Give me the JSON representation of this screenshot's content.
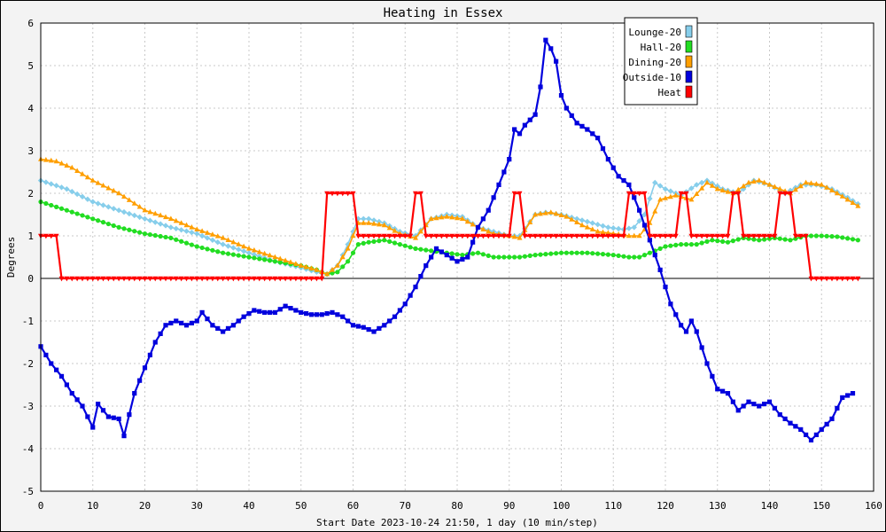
{
  "chart_data": {
    "type": "line",
    "title": "Heating in Essex",
    "xlabel": "Start Date 2023-10-24 21:50, 1 day (10 min/step)",
    "ylabel": "Degrees",
    "xlim": [
      0,
      160
    ],
    "ylim": [
      -5,
      6
    ],
    "xticks": [
      0,
      10,
      20,
      30,
      40,
      50,
      60,
      70,
      80,
      90,
      100,
      110,
      120,
      130,
      140,
      150,
      160
    ],
    "yticks": [
      -5,
      -4,
      -3,
      -2,
      -1,
      0,
      1,
      2,
      3,
      4,
      5,
      6
    ],
    "grid": true,
    "legend_position": "top-right",
    "series": [
      {
        "name": "Lounge-20",
        "color": "#87ceeb",
        "marker": "diamond",
        "x": [
          0,
          5,
          10,
          15,
          20,
          25,
          30,
          35,
          40,
          45,
          50,
          53,
          55,
          57,
          59,
          61,
          63,
          66,
          69,
          72,
          75,
          78,
          81,
          84,
          87,
          90,
          92,
          95,
          97,
          100,
          103,
          106,
          109,
          112,
          114,
          116,
          118,
          120,
          123,
          126,
          128,
          131,
          134,
          137,
          140,
          143,
          146,
          149,
          152,
          155,
          157
        ],
        "y": [
          2.3,
          2.1,
          1.8,
          1.6,
          1.4,
          1.2,
          1.05,
          0.8,
          0.6,
          0.4,
          0.25,
          0.15,
          0.1,
          0.3,
          0.8,
          1.4,
          1.4,
          1.3,
          1.1,
          1.0,
          1.4,
          1.5,
          1.45,
          1.2,
          1.1,
          1.0,
          1.0,
          1.5,
          1.55,
          1.5,
          1.4,
          1.3,
          1.2,
          1.15,
          1.2,
          1.5,
          2.25,
          2.1,
          1.95,
          2.2,
          2.3,
          2.1,
          2.0,
          2.3,
          2.2,
          2.0,
          2.2,
          2.2,
          2.1,
          1.9,
          1.75
        ]
      },
      {
        "name": "Hall-20",
        "color": "#22dd22",
        "marker": "circle",
        "x": [
          0,
          5,
          10,
          15,
          20,
          25,
          30,
          35,
          40,
          45,
          50,
          53,
          55,
          57,
          59,
          61,
          63,
          66,
          69,
          72,
          75,
          78,
          81,
          84,
          87,
          90,
          92,
          95,
          100,
          105,
          110,
          113,
          115,
          117,
          120,
          123,
          126,
          129,
          132,
          135,
          138,
          141,
          144,
          147,
          150,
          153,
          157
        ],
        "y": [
          1.8,
          1.6,
          1.4,
          1.2,
          1.05,
          0.95,
          0.75,
          0.6,
          0.5,
          0.4,
          0.3,
          0.2,
          0.1,
          0.15,
          0.4,
          0.8,
          0.85,
          0.9,
          0.8,
          0.7,
          0.65,
          0.6,
          0.55,
          0.6,
          0.5,
          0.5,
          0.5,
          0.55,
          0.6,
          0.6,
          0.55,
          0.5,
          0.5,
          0.6,
          0.75,
          0.8,
          0.8,
          0.9,
          0.85,
          0.95,
          0.9,
          0.95,
          0.9,
          1.0,
          1.0,
          0.98,
          0.9
        ]
      },
      {
        "name": "Dining-20",
        "color": "#ff9f00",
        "marker": "triangle",
        "x": [
          0,
          3,
          6,
          10,
          15,
          20,
          25,
          30,
          35,
          40,
          45,
          50,
          53,
          55,
          57,
          59,
          61,
          63,
          66,
          69,
          72,
          75,
          78,
          81,
          84,
          87,
          90,
          92,
          95,
          98,
          101,
          104,
          107,
          110,
          113,
          115,
          117,
          119,
          122,
          125,
          128,
          130,
          133,
          136,
          138,
          141,
          144,
          147,
          150,
          153,
          157
        ],
        "y": [
          2.8,
          2.75,
          2.6,
          2.3,
          2.0,
          1.6,
          1.4,
          1.15,
          0.95,
          0.7,
          0.5,
          0.3,
          0.2,
          0.1,
          0.3,
          0.7,
          1.3,
          1.3,
          1.25,
          1.05,
          0.95,
          1.4,
          1.45,
          1.4,
          1.2,
          1.05,
          1.0,
          0.95,
          1.5,
          1.55,
          1.45,
          1.25,
          1.1,
          1.05,
          1.0,
          1.0,
          1.3,
          1.85,
          1.95,
          1.85,
          2.25,
          2.1,
          2.0,
          2.25,
          2.3,
          2.15,
          2.0,
          2.25,
          2.2,
          2.0,
          1.7
        ]
      },
      {
        "name": "Outside-10",
        "color": "#0000dd",
        "marker": "square",
        "x": [
          0,
          2,
          4,
          6,
          8,
          10,
          11,
          13,
          15,
          16,
          18,
          20,
          22,
          24,
          26,
          28,
          30,
          31,
          33,
          35,
          37,
          39,
          41,
          43,
          45,
          47,
          48,
          50,
          52,
          54,
          56,
          58,
          60,
          62,
          64,
          66,
          68,
          70,
          72,
          74,
          76,
          78,
          80,
          82,
          84,
          86,
          88,
          90,
          91,
          92,
          93,
          95,
          96,
          97,
          98,
          99,
          100,
          101,
          103,
          105,
          107,
          109,
          111,
          113,
          115,
          117,
          119,
          121,
          123,
          124,
          125,
          126,
          128,
          130,
          132,
          134,
          136,
          138,
          140,
          142,
          144,
          146,
          148,
          150,
          152,
          154,
          156
        ],
        "y": [
          -1.6,
          -2.0,
          -2.3,
          -2.7,
          -3.0,
          -3.5,
          -2.95,
          -3.25,
          -3.3,
          -3.7,
          -2.7,
          -2.1,
          -1.5,
          -1.1,
          -1.0,
          -1.1,
          -1.0,
          -0.8,
          -1.1,
          -1.25,
          -1.1,
          -0.9,
          -0.75,
          -0.8,
          -0.8,
          -0.65,
          -0.7,
          -0.8,
          -0.85,
          -0.85,
          -0.8,
          -0.9,
          -1.1,
          -1.15,
          -1.25,
          -1.1,
          -0.9,
          -0.6,
          -0.2,
          0.3,
          0.7,
          0.55,
          0.4,
          0.5,
          1.2,
          1.6,
          2.2,
          2.8,
          3.5,
          3.4,
          3.6,
          3.85,
          4.5,
          5.6,
          5.4,
          5.1,
          4.3,
          4.0,
          3.65,
          3.5,
          3.3,
          2.8,
          2.4,
          2.2,
          1.6,
          0.9,
          0.2,
          -0.6,
          -1.1,
          -1.25,
          -1.0,
          -1.25,
          -2.0,
          -2.6,
          -2.7,
          -3.1,
          -2.9,
          -3.0,
          -2.9,
          -3.2,
          -3.4,
          -3.55,
          -3.8,
          -3.55,
          -3.3,
          -2.8,
          -2.7
        ]
      },
      {
        "name": "Heat",
        "color": "#ff0000",
        "marker": "triangle-down",
        "x": [
          0,
          3,
          4,
          54,
          55,
          60,
          61,
          71,
          72,
          73,
          74,
          90,
          91,
          92,
          93,
          112,
          113,
          116,
          117,
          122,
          123,
          124,
          125,
          132,
          133,
          134,
          135,
          141,
          142,
          144,
          145,
          147,
          148,
          157
        ],
        "y": [
          1,
          1,
          0,
          0,
          2,
          2,
          1,
          1,
          2,
          2,
          1,
          1,
          2,
          2,
          1,
          1,
          2,
          2,
          1,
          1,
          2,
          2,
          1,
          1,
          2,
          2,
          1,
          1,
          2,
          2,
          1,
          1,
          0,
          0
        ]
      }
    ]
  }
}
